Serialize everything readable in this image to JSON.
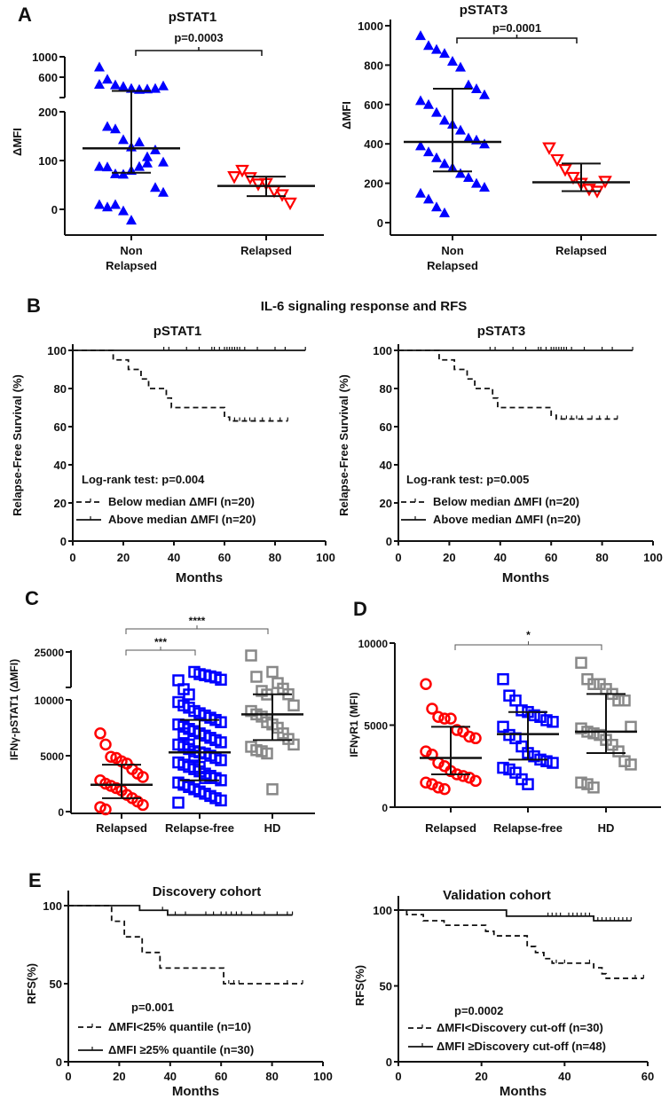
{
  "panel_labels": {
    "A": "A",
    "B": "B",
    "C": "C",
    "D": "D",
    "E": "E"
  },
  "section_B_title": "IL-6 signaling response and RFS",
  "chart_data": [
    {
      "type": "scatter",
      "title": "pSTAT1",
      "ylabel": "ΔMFI",
      "xlabel": "",
      "yticks": [
        0,
        100,
        200,
        600,
        1000
      ],
      "ylim": [
        -50,
        1000
      ],
      "y_axis_break": [
        200,
        300
      ],
      "categories": [
        [
          "Non",
          "Relapsed"
        ],
        [
          "Relapsed"
        ]
      ],
      "groups": [
        {
          "name": "Non Relapsed",
          "color": "#0000ff",
          "marker": "triangle-up-filled",
          "values": [
            800,
            560,
            450,
            420,
            380,
            360,
            370,
            380,
            430,
            460,
            170,
            165,
            143,
            128,
            138,
            108,
            122,
            97,
            88,
            87,
            73,
            72,
            80,
            88,
            95,
            45,
            35,
            10,
            5,
            10,
            -3,
            -22
          ],
          "median": 125,
          "iqr": [
            75,
            330
          ]
        },
        {
          "name": "Relapsed",
          "color": "#ff0000",
          "marker": "triangle-down-open",
          "values": [
            67,
            80,
            65,
            52,
            53,
            38,
            30,
            13
          ],
          "median": 48,
          "iqr": [
            27,
            67
          ]
        }
      ],
      "comparisons": [
        {
          "from": 0,
          "to": 1,
          "label": "p=0.0003"
        }
      ]
    },
    {
      "type": "scatter",
      "title": "pSTAT3",
      "ylabel": "ΔMFI",
      "xlabel": "",
      "yticks": [
        0,
        200,
        400,
        600,
        800,
        1000
      ],
      "ylim": [
        -50,
        1000
      ],
      "categories": [
        [
          "Non",
          "Relapsed"
        ],
        [
          "Relapsed"
        ]
      ],
      "groups": [
        {
          "name": "Non Relapsed",
          "color": "#0000ff",
          "marker": "triangle-up-filled",
          "values": [
            950,
            900,
            880,
            860,
            820,
            790,
            700,
            680,
            650,
            620,
            600,
            560,
            520,
            500,
            470,
            430,
            420,
            400,
            390,
            360,
            330,
            300,
            280,
            250,
            230,
            200,
            180,
            150,
            120,
            80,
            50
          ],
          "median": 410,
          "iqr": [
            260,
            680
          ]
        },
        {
          "name": "Relapsed",
          "color": "#ff0000",
          "marker": "triangle-down-open",
          "values": [
            380,
            320,
            270,
            230,
            200,
            170,
            160,
            210
          ],
          "median": 205,
          "iqr": [
            160,
            300
          ]
        }
      ],
      "comparisons": [
        {
          "from": 0,
          "to": 1,
          "label": "p=0.0001"
        }
      ]
    },
    {
      "type": "line",
      "subtype": "kaplan-meier",
      "title": "pSTAT1",
      "xlabel": "Months",
      "ylabel": "Relapse-Free Survival (%)",
      "xticks": [
        0,
        20,
        40,
        60,
        80,
        100
      ],
      "yticks": [
        0,
        20,
        40,
        60,
        80,
        100
      ],
      "xlim": [
        0,
        100
      ],
      "ylim": [
        0,
        100
      ],
      "annotation": "Log-rank test: p=0.004",
      "legend_position": "bottom-left",
      "series": [
        {
          "name": "Below median ΔMFI (n=20)",
          "style": "dashed",
          "steps": [
            [
              0,
              100
            ],
            [
              16,
              95
            ],
            [
              22,
              90
            ],
            [
              27,
              85
            ],
            [
              30,
              80
            ],
            [
              37,
              75
            ],
            [
              39,
              70
            ],
            [
              60,
              65
            ],
            [
              62,
              63
            ]
          ],
          "end": 85,
          "censored": [
            62,
            64,
            66,
            68,
            70,
            72,
            75,
            78,
            82,
            85
          ]
        },
        {
          "name": "Above median ΔMFI (n=20)",
          "style": "solid",
          "steps": [
            [
              0,
              100
            ]
          ],
          "end": 92,
          "censored": [
            36,
            38,
            45,
            50,
            55,
            56,
            58,
            60,
            61,
            62,
            63,
            64,
            65,
            66,
            68,
            73,
            80,
            84,
            92
          ]
        }
      ]
    },
    {
      "type": "line",
      "subtype": "kaplan-meier",
      "title": "pSTAT3",
      "xlabel": "Months",
      "ylabel": "Relapse-Free Survival (%)",
      "xticks": [
        0,
        20,
        40,
        60,
        80,
        100
      ],
      "yticks": [
        0,
        20,
        40,
        60,
        80,
        100
      ],
      "xlim": [
        0,
        100
      ],
      "ylim": [
        0,
        100
      ],
      "annotation": "Log-rank test: p=0.005",
      "legend_position": "bottom-left",
      "series": [
        {
          "name": "Below median ΔMFI (n=20)",
          "style": "dashed",
          "steps": [
            [
              0,
              100
            ],
            [
              16,
              95
            ],
            [
              22,
              90
            ],
            [
              27,
              85
            ],
            [
              30,
              80
            ],
            [
              37,
              75
            ],
            [
              39,
              70
            ],
            [
              60,
              66
            ],
            [
              62,
              64
            ]
          ],
          "end": 86,
          "censored": [
            62,
            64,
            66,
            68,
            70,
            72,
            76,
            79,
            82,
            86
          ]
        },
        {
          "name": "Above median ΔMFI (n=20)",
          "style": "solid",
          "steps": [
            [
              0,
              100
            ]
          ],
          "end": 92,
          "censored": [
            36,
            38,
            45,
            50,
            55,
            56,
            58,
            60,
            61,
            62,
            63,
            64,
            65,
            66,
            68,
            73,
            80,
            84,
            92
          ]
        }
      ]
    },
    {
      "type": "scatter",
      "title": "",
      "ylabel": "IFNγ-pSTAT1 (ΔMFI)",
      "xlabel": "",
      "yticks": [
        0,
        5000,
        10000,
        25000
      ],
      "ylim": [
        0,
        25000
      ],
      "y_axis_break": [
        10000,
        15000
      ],
      "categories": [
        [
          "Relapsed"
        ],
        [
          "Relapse-free"
        ],
        [
          "HD"
        ]
      ],
      "groups": [
        {
          "name": "Relapsed",
          "color": "#ff0000",
          "marker": "circle-open",
          "values": [
            7000,
            6000,
            4900,
            4800,
            4500,
            4300,
            3800,
            3400,
            3100,
            2800,
            2500,
            2300,
            2100,
            1900,
            1500,
            1200,
            900,
            600,
            400,
            200
          ],
          "median": 2400,
          "iqr": [
            1200,
            4200
          ]
        },
        {
          "name": "Relapse-free",
          "color": "#0000ff",
          "marker": "square-open",
          "values": [
            17000,
            14500,
            13000,
            12500,
            12300,
            12200,
            12100,
            12000,
            11800,
            9800,
            9500,
            9300,
            9000,
            8800,
            8600,
            8400,
            8200,
            8000,
            7800,
            7600,
            7400,
            7200,
            7000,
            6800,
            6600,
            6400,
            6200,
            6000,
            5800,
            5600,
            5400,
            5300,
            5200,
            5000,
            4800,
            4600,
            4400,
            4200,
            4000,
            3800,
            3600,
            3400,
            3200,
            3000,
            2800,
            2600,
            2400,
            2200,
            2000,
            1800,
            1600,
            1400,
            1200,
            1000,
            800,
            7000,
            6000,
            5000,
            4000,
            3000
          ],
          "median": 5300,
          "iqr": [
            2800,
            8200
          ]
        },
        {
          "name": "HD",
          "color": "#888888",
          "marker": "square-open",
          "values": [
            24000,
            18000,
            14000,
            13000,
            12500,
            11500,
            11000,
            10500,
            9500,
            9000,
            8700,
            8500,
            8000,
            7800,
            7500,
            7000,
            6500,
            6000,
            5800,
            5500,
            5400,
            5200,
            2000
          ],
          "median": 8700,
          "iqr": [
            6400,
            10500
          ]
        }
      ],
      "comparisons": [
        {
          "from": 0,
          "to": 1,
          "label": "***"
        },
        {
          "from": 0,
          "to": 2,
          "label": "****"
        }
      ]
    },
    {
      "type": "scatter",
      "title": "",
      "ylabel": "IFNγR1 (MFI)",
      "xlabel": "",
      "yticks": [
        0,
        5000,
        10000
      ],
      "ylim": [
        0,
        10000
      ],
      "categories": [
        [
          "Relapsed"
        ],
        [
          "Relapse-free"
        ],
        [
          "HD"
        ]
      ],
      "groups": [
        {
          "name": "Relapsed",
          "color": "#ff0000",
          "marker": "circle-open",
          "values": [
            7500,
            6000,
            5500,
            5400,
            5400,
            4700,
            4600,
            4300,
            4200,
            3400,
            3200,
            2700,
            2500,
            2200,
            2000,
            1900,
            1800,
            1600,
            1500,
            1400,
            1200,
            1100
          ],
          "median": 3000,
          "iqr": [
            2000,
            4900
          ]
        },
        {
          "name": "Relapse-free",
          "color": "#0000ff",
          "marker": "square-open",
          "values": [
            7800,
            6800,
            6500,
            5900,
            5800,
            5600,
            5500,
            5300,
            5200,
            4900,
            4400,
            4200,
            3700,
            3300,
            3100,
            2900,
            2800,
            2700,
            2400,
            2300,
            2100,
            1700,
            1400
          ],
          "median": 4450,
          "iqr": [
            2900,
            5800
          ]
        },
        {
          "name": "HD",
          "color": "#888888",
          "marker": "square-open",
          "values": [
            8800,
            7800,
            7500,
            7500,
            7200,
            6900,
            6500,
            6500,
            4900,
            4800,
            4600,
            4500,
            4400,
            4100,
            3800,
            3400,
            2800,
            2600,
            1500,
            1400,
            1200
          ],
          "median": 4600,
          "iqr": [
            3300,
            6900
          ]
        }
      ],
      "comparisons": [
        {
          "from": 0,
          "to": 2,
          "label": "*"
        }
      ]
    },
    {
      "type": "line",
      "subtype": "kaplan-meier",
      "title": "Discovery cohort",
      "xlabel": "Months",
      "ylabel": "RFS(%)",
      "xticks": [
        0,
        20,
        40,
        60,
        80,
        100
      ],
      "yticks": [
        0,
        50,
        100
      ],
      "xlim": [
        0,
        100
      ],
      "ylim": [
        0,
        100
      ],
      "annotation": "p=0.001",
      "legend_position": "bottom-left",
      "series": [
        {
          "name": "ΔMFI<25%  quantile (n=10)",
          "style": "dashed",
          "steps": [
            [
              0,
              100
            ],
            [
              17,
              90
            ],
            [
              22,
              80
            ],
            [
              29,
              70
            ],
            [
              36,
              60
            ],
            [
              61,
              50
            ]
          ],
          "end": 92,
          "censored": [
            63,
            65,
            67,
            86,
            92
          ]
        },
        {
          "name": "ΔMFI ≥25%  quantile (n=30)",
          "style": "solid",
          "steps": [
            [
              0,
              100
            ],
            [
              28,
              97
            ],
            [
              39,
              94
            ]
          ],
          "end": 88,
          "censored": [
            37,
            42,
            46,
            54,
            57,
            60,
            62,
            64,
            66,
            68,
            72,
            77,
            82,
            86,
            88
          ]
        }
      ]
    },
    {
      "type": "line",
      "subtype": "kaplan-meier",
      "title": "Validation cohort",
      "xlabel": "Months",
      "ylabel": "RFS(%)",
      "xticks": [
        0,
        20,
        40,
        60
      ],
      "yticks": [
        0,
        50,
        100
      ],
      "xlim": [
        0,
        60
      ],
      "ylim": [
        0,
        100
      ],
      "annotation": "p=0.0002",
      "legend_position": "bottom-left",
      "series": [
        {
          "name": "ΔMFI<Discovery  cut-off  (n=30)",
          "style": "dashed",
          "steps": [
            [
              0,
              100
            ],
            [
              2,
              97
            ],
            [
              6,
              93
            ],
            [
              11,
              90
            ],
            [
              21,
              86
            ],
            [
              23,
              83
            ],
            [
              31,
              76
            ],
            [
              33,
              72
            ],
            [
              35,
              68
            ],
            [
              37,
              65
            ],
            [
              47,
              62
            ],
            [
              49,
              58
            ],
            [
              50,
              55
            ]
          ],
          "end": 59,
          "censored": [
            38,
            40,
            46,
            57,
            59
          ]
        },
        {
          "name": "ΔMFI ≥Discovery  cut-off  (n=48)",
          "style": "solid",
          "steps": [
            [
              0,
              100
            ],
            [
              26,
              96
            ],
            [
              47,
              93
            ]
          ],
          "end": 56,
          "censored": [
            36,
            37,
            38,
            39,
            41,
            42,
            43,
            44,
            45,
            46,
            48,
            49,
            50,
            51,
            52,
            53,
            54,
            55,
            56
          ]
        }
      ]
    }
  ]
}
